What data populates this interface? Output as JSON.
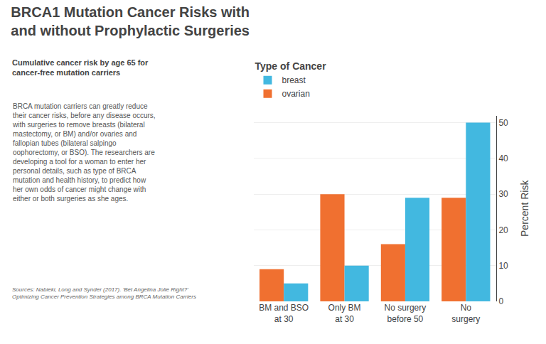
{
  "chart_data": {
    "type": "bar",
    "title": "BRCA1 Mutation Cancer Risks with\nand without Prophylactic Surgeries",
    "subtitle": "Cumulative cancer risk by age 65 for\ncancer-free mutation carriers",
    "annotations": [
      "BRCA mutation carriers can greatly reduce\ntheir cancer risks, before any disease occurs,\nwith surgeries to remove breasts (bilateral\nmastectomy, or BM) and/or ovaries and\nfallopian tubes (bilateral salpingo\noophorectomy, or BSO). The researchers are\ndeveloping a tool for a woman to enter her\npersonal details, such as type of BRCA\nmutation and health history, to predict how\nher own odds of cancer might change with\neither or both surgeries as she ages.",
      "Sources: Nabieki, Long and Synder (2017). 'Bet Angelina Jolie Right?'\nOptimizing Cancer Prevention Strategies among BRCA Mutation Carriers"
    ],
    "categories": [
      "BM and BSO\nat 30",
      "Only BM\nat 30",
      "No surgery\nbefore 50",
      "No\nsurgery"
    ],
    "series": [
      {
        "name": "ovarian",
        "color": "#f07030",
        "values": [
          9,
          30,
          16,
          29
        ]
      },
      {
        "name": "breast",
        "color": "#42b8e0",
        "values": [
          5,
          10,
          29,
          50
        ]
      }
    ],
    "legend_title": "Type of Cancer",
    "ylabel": "Percent Risk",
    "ylim": [
      0,
      52
    ],
    "yticks": [
      0,
      10,
      20,
      30,
      40,
      50
    ],
    "grid": true,
    "legend": "upper left"
  }
}
